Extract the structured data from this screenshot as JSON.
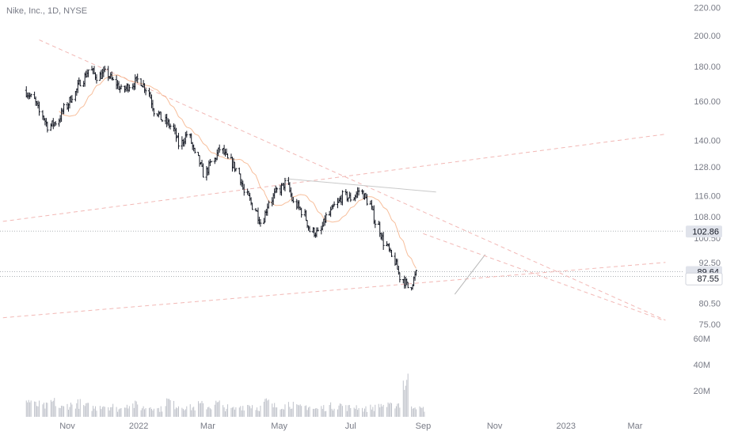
{
  "chart_data": {
    "type": "ohlc",
    "title": "Nike, Inc., 1D, NYSE",
    "xlabel": "",
    "ylabel": "",
    "y_scale": "log",
    "ylim": [
      72,
      222
    ],
    "x_tick_labels": [
      "Nov",
      "2022",
      "Mar",
      "May",
      "Jul",
      "Sep",
      "Nov",
      "2023",
      "Mar"
    ],
    "x_tick_dates": [
      "2021-11-01",
      "2022-01-01",
      "2022-03-01",
      "2022-05-01",
      "2022-07-01",
      "2022-09-01",
      "2022-11-01",
      "2023-01-01",
      "2023-03-01"
    ],
    "y_tick_labels": [
      220,
      200,
      180,
      160,
      140,
      128,
      116,
      108,
      100.5,
      92.5,
      80.5,
      75
    ],
    "price_badges": [
      {
        "label": "102.86",
        "value": 102.86,
        "style": "gray"
      },
      {
        "label": "89.64",
        "value": 89.64,
        "style": "gray"
      },
      {
        "label": "87.55",
        "value": 87.55,
        "style": "white"
      }
    ],
    "volume_axis_labels": [
      "60M",
      "40M",
      "20M"
    ],
    "volume_ticks": [
      60,
      40,
      20
    ],
    "weekly_closes": {
      "start_date": "2021-09-27",
      "values": [
        166,
        162,
        154,
        147,
        149,
        156,
        163,
        171,
        178,
        174,
        176,
        171,
        166,
        169,
        172,
        167,
        155,
        150,
        147,
        138,
        143,
        133,
        125,
        130,
        136,
        131,
        127,
        117,
        112,
        106,
        114,
        118,
        121,
        113,
        110,
        103,
        102,
        108,
        112,
        116,
        115,
        118,
        114,
        106,
        99,
        94,
        88,
        85,
        89
      ]
    },
    "volume_weekly": [
      12,
      9,
      8,
      11,
      7,
      9,
      10,
      8,
      7,
      9,
      8,
      6,
      10,
      9,
      7,
      8,
      6,
      12,
      9,
      8,
      7,
      9,
      8,
      10,
      7,
      6,
      8,
      9,
      7,
      11,
      8,
      9,
      10,
      7,
      8,
      6,
      7,
      8,
      9,
      7,
      8,
      6,
      7,
      9,
      8,
      10,
      26,
      9,
      6
    ],
    "trendlines": [
      {
        "from": [
          "2021-10-08",
          197
        ],
        "to": [
          "2023-03-27",
          76
        ],
        "style": "dashed",
        "color": "#f2b8b5"
      },
      {
        "from": [
          "2021-09-01",
          76.5
        ],
        "to": [
          "2023-03-27",
          92.5
        ],
        "style": "dashed",
        "color": "#f2b8b5"
      },
      {
        "from": [
          "2021-09-01",
          106
        ],
        "to": [
          "2023-03-27",
          143
        ],
        "style": "dashed",
        "color": "#f2b8b5"
      },
      {
        "from": [
          "2022-05-05",
          123
        ],
        "to": [
          "2022-09-12",
          117.5
        ],
        "style": "solid",
        "color": "#c9c9c9"
      },
      {
        "from": [
          "2022-09-28",
          83
        ],
        "to": [
          "2022-10-24",
          95
        ],
        "style": "solid",
        "color": "#b8b8b8"
      },
      {
        "from": [
          "2022-09-01",
          102
        ],
        "to": [
          "2023-03-25",
          76
        ],
        "style": "dashed",
        "color": "#f2b8b5"
      }
    ],
    "horizontal_lines": [
      102.86,
      89.64,
      88.2
    ],
    "grid": false
  },
  "colors": {
    "bars": "#131722",
    "axis_text": "#787b86",
    "ma_line": "#f4a87a",
    "badge_gray": "#e0e3eb",
    "dotted": "#9aa0a6"
  }
}
